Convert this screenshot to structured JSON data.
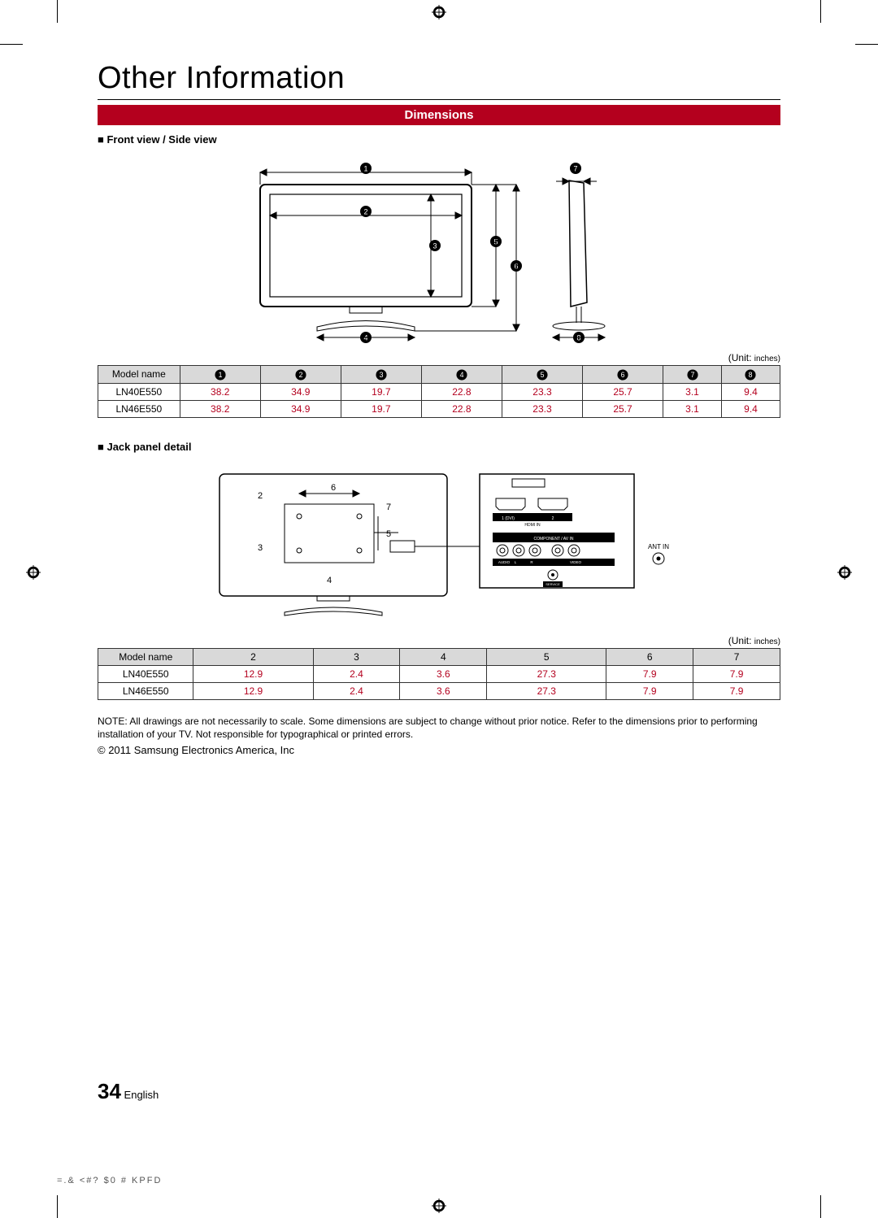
{
  "title": "Other Information",
  "banner": "Dimensions",
  "section1_header": "■ Front view / Side view",
  "section2_header": "■ Jack panel detail",
  "unit_label": "(Unit:",
  "unit_value": "inches)",
  "table1": {
    "header_first": "Model name",
    "circle_labels": [
      "1",
      "2",
      "3",
      "4",
      "5",
      "6",
      "7",
      "8"
    ],
    "rows": [
      {
        "model": "LN40E550",
        "vals": [
          "38.2",
          "34.9",
          "19.7",
          "22.8",
          "23.3",
          "25.7",
          "3.1",
          "9.4"
        ]
      },
      {
        "model": "LN46E550",
        "vals": [
          "38.2",
          "34.9",
          "19.7",
          "22.8",
          "23.3",
          "25.7",
          "3.1",
          "9.4"
        ]
      }
    ]
  },
  "table2": {
    "header_first": "Model name",
    "cols": [
      "2",
      "3",
      "4",
      "5",
      "6",
      "7"
    ],
    "rows": [
      {
        "model": "LN40E550",
        "vals": [
          "12.9",
          "2.4",
          "3.6",
          "27.3",
          "7.9",
          "7.9"
        ]
      },
      {
        "model": "LN46E550",
        "vals": [
          "12.9",
          "2.4",
          "3.6",
          "27.3",
          "7.9",
          "7.9"
        ]
      }
    ]
  },
  "note": "NOTE: All drawings are not necessarily to scale. Some dimensions are subject to change without prior notice.  Refer to the dimensions prior to performing installation of your TV. Not responsible for typographical or printed errors.",
  "copyright": "© 2011 Samsung Electronics America, Inc",
  "page_number": "34",
  "page_lang": "English",
  "footer": "=.&    <#? $0        # KPFD",
  "colors": {
    "accent": "#b4001e",
    "table_header_bg": "#d9d9d9"
  },
  "diagram1": {
    "circle_labels": [
      "1",
      "2",
      "3",
      "4",
      "5",
      "6",
      "7",
      "8"
    ]
  },
  "diagram2": {
    "labels": [
      "2",
      "3",
      "4",
      "5",
      "6",
      "7"
    ],
    "port_labels": {
      "hdmi1": "1 (DVI)",
      "hdmi2": "2",
      "hdmi_group": "HDMI IN",
      "comp": "COMPONENT / AV IN",
      "audio_l": "AUDIO",
      "l": "L",
      "r": "R",
      "video": "VIDEO",
      "service": "SERVICE",
      "ant": "ANT IN"
    }
  }
}
